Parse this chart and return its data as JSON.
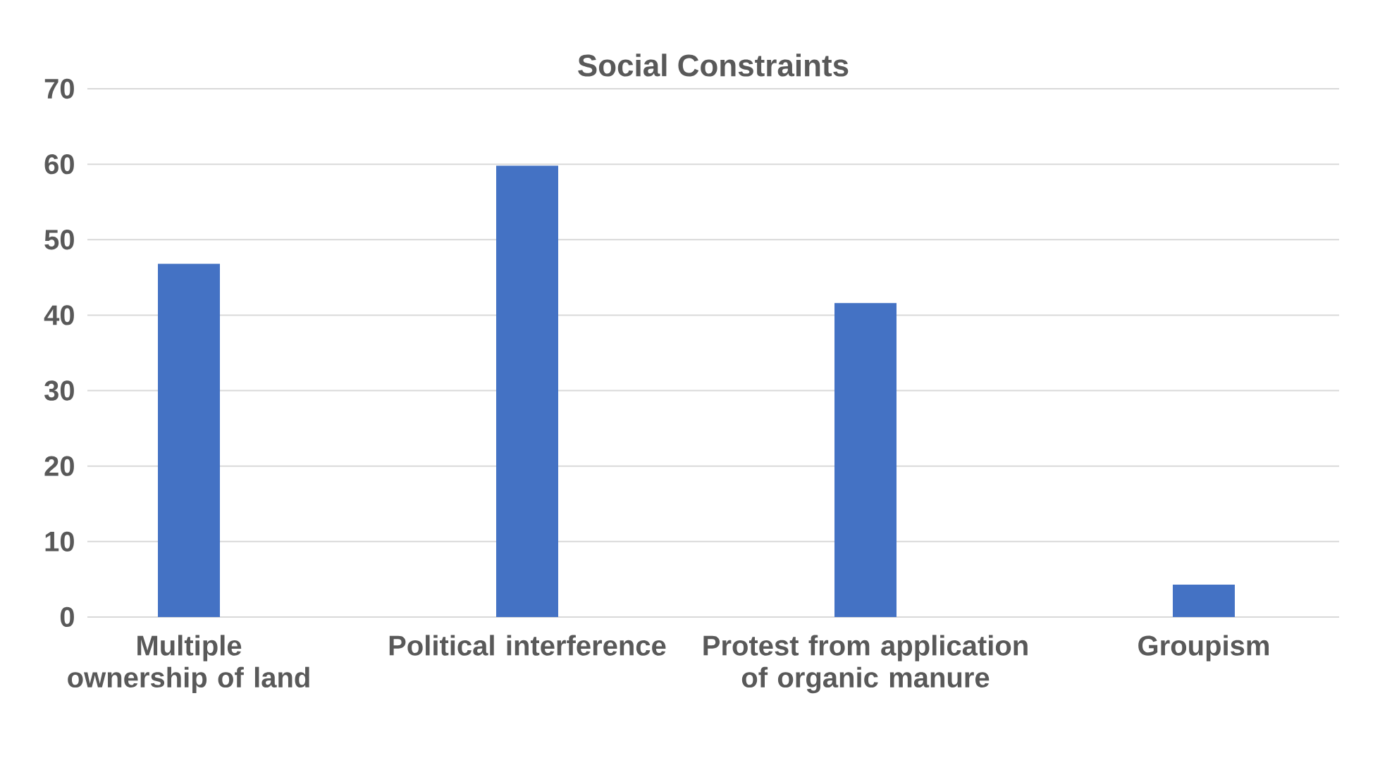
{
  "chart_data": {
    "type": "bar",
    "title": "Social Constraints",
    "categories": [
      "Multiple ownership of land",
      "Political interference",
      "Protest from application of organic manure",
      "Groupism"
    ],
    "values": [
      46.8,
      59.8,
      41.6,
      4.3
    ],
    "color": "#4472c4",
    "ylim": [
      0,
      70
    ],
    "yticks": [
      0,
      10,
      20,
      30,
      40,
      50,
      60,
      70
    ],
    "grid": "y"
  }
}
